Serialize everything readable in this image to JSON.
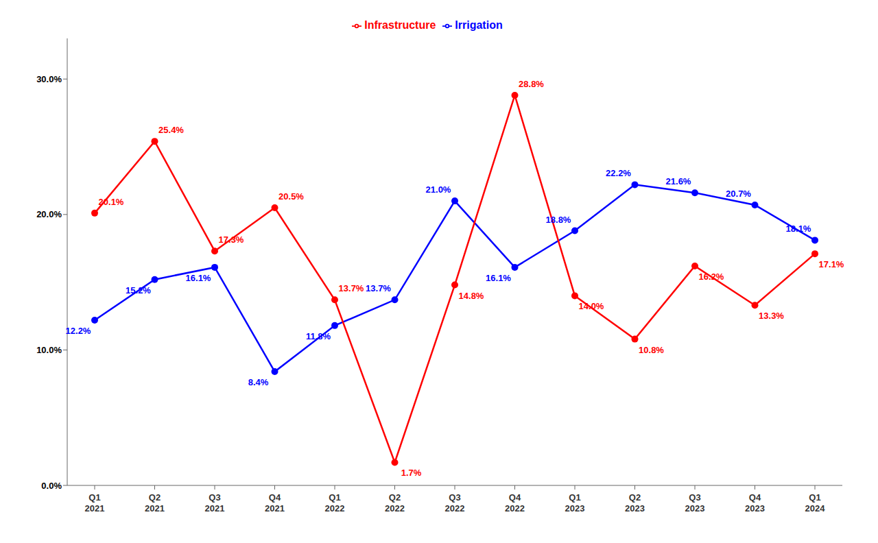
{
  "chart_data": {
    "type": "line",
    "categories": [
      "Q1\n2021",
      "Q2\n2021",
      "Q3\n2021",
      "Q4\n2021",
      "Q1\n2022",
      "Q2\n2022",
      "Q3\n2022",
      "Q4\n2022",
      "Q1\n2023",
      "Q2\n2023",
      "Q3\n2023",
      "Q4\n2023",
      "Q1\n2024"
    ],
    "series": [
      {
        "name": "Irrigation",
        "color": "#0000FF",
        "values": [
          12.2,
          15.2,
          16.1,
          8.4,
          11.8,
          13.7,
          21.0,
          16.1,
          18.8,
          22.2,
          21.6,
          20.7,
          18.1
        ],
        "value_labels": [
          "12.2%",
          "15.2%",
          "16.1%",
          "8.4%",
          "11.8%",
          "13.7%",
          "21.0%",
          "16.1%",
          "18.8%",
          "22.2%",
          "21.6%",
          "20.7%",
          "18.1%"
        ]
      },
      {
        "name": "Infrastructure",
        "color": "#FF0000",
        "values": [
          20.1,
          25.4,
          17.3,
          20.5,
          13.7,
          1.7,
          14.8,
          28.8,
          14.0,
          10.8,
          16.2,
          13.3,
          17.1
        ],
        "value_labels": [
          "20.1%",
          "25.4%",
          "17.3%",
          "20.5%",
          "13.7%",
          "1.7%",
          "14.8%",
          "28.8%",
          "14.0%",
          "10.8%",
          "16.2%",
          "13.3%",
          "17.1%"
        ]
      }
    ],
    "ylim": [
      0.0,
      33.0
    ],
    "yticks": [
      {
        "value": 0.0,
        "label": "0.0%"
      },
      {
        "value": 10.0,
        "label": "10.0%"
      },
      {
        "value": 20.0,
        "label": "20.0%"
      },
      {
        "value": 30.0,
        "label": "30.0%"
      }
    ],
    "grid": false,
    "legend": "top",
    "data_labels": true,
    "marker": "circle"
  }
}
